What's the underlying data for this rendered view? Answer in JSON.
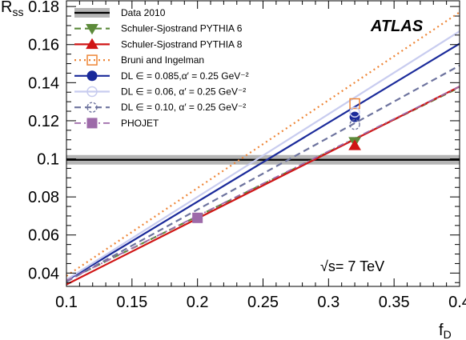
{
  "chart_data": {
    "type": "line",
    "xlabel": "f",
    "xlabel_sub": "D",
    "ylabel": "R",
    "ylabel_sub": "ss",
    "xlim": [
      0.1,
      0.4
    ],
    "ylim": [
      0.033,
      0.183
    ],
    "x_ticks": [
      0.1,
      0.15,
      0.2,
      0.25,
      0.3,
      0.35,
      0.4
    ],
    "x_tick_labels": [
      "0.1",
      "0.15",
      "0.2",
      "0.25",
      "0.3",
      "0.35",
      "0.4"
    ],
    "y_ticks": [
      0.04,
      0.06,
      0.08,
      0.1,
      0.12,
      0.14,
      0.16,
      0.18
    ],
    "y_tick_labels": [
      "0.04",
      "0.06",
      "0.08",
      "0.1",
      "0.12",
      "0.14",
      "0.16",
      "0.18"
    ],
    "grid": false,
    "legend_position": "top-left",
    "annotations": {
      "atlas": "ATLAS",
      "energy_sqrt": "√s",
      "energy_rest": "= 7 TeV"
    },
    "data_band": {
      "name": "Data 2010",
      "center": 0.0995,
      "low": 0.097,
      "high": 0.102,
      "band_color": "#b5b5b5",
      "line_color": "#000000"
    },
    "series": [
      {
        "name": "Schuler-Sjostrand PYTHIA 6",
        "color": "#5c8a3a",
        "style": "dashed",
        "marker": "triangle-down",
        "x": [
          0.1,
          0.4
        ],
        "y": [
          0.036,
          0.1375
        ],
        "point": [
          0.32,
          0.109
        ]
      },
      {
        "name": "Schuler-Sjostrand PYTHIA 8",
        "color": "#d01515",
        "style": "solid",
        "marker": "triangle-up",
        "x": [
          0.1,
          0.4
        ],
        "y": [
          0.034,
          0.138
        ],
        "point": [
          0.32,
          0.107
        ]
      },
      {
        "name": "Bruni and Ingelman",
        "color": "#ee8536",
        "style": "dotted",
        "marker": "open-square",
        "x": [
          0.1,
          0.4
        ],
        "y": [
          0.0385,
          0.177
        ],
        "point": [
          0.32,
          0.129
        ]
      },
      {
        "name": "DL ∈ = 0.085,α′ = 0.25 GeV⁻²",
        "color": "#1a2a9a",
        "style": "solid",
        "marker": "filled-circle",
        "x": [
          0.1,
          0.4
        ],
        "y": [
          0.036,
          0.1605
        ],
        "point": [
          0.32,
          0.122
        ]
      },
      {
        "name": "DL ∈ = 0.06, α′ = 0.25 GeV⁻²",
        "color": "#c8ccef",
        "style": "solid",
        "marker": "open-circle",
        "x": [
          0.1,
          0.4
        ],
        "y": [
          0.0365,
          0.167
        ],
        "point": [
          0.32,
          0.1245
        ]
      },
      {
        "name": "DL ∈ = 0.10, α′ = 0.25 GeV⁻²",
        "color": "#6d739e",
        "style": "dashed",
        "marker": "dashed-circle",
        "x": [
          0.1,
          0.4
        ],
        "y": [
          0.0355,
          0.149
        ],
        "point": [
          0.32,
          0.118
        ]
      },
      {
        "name": "PHOJET",
        "color": "#9d6aa9",
        "style": "dashdot",
        "marker": "filled-square",
        "x": [
          0.1,
          0.4
        ],
        "y": [
          0.036,
          0.138
        ],
        "point": [
          0.2,
          0.069
        ]
      }
    ]
  }
}
